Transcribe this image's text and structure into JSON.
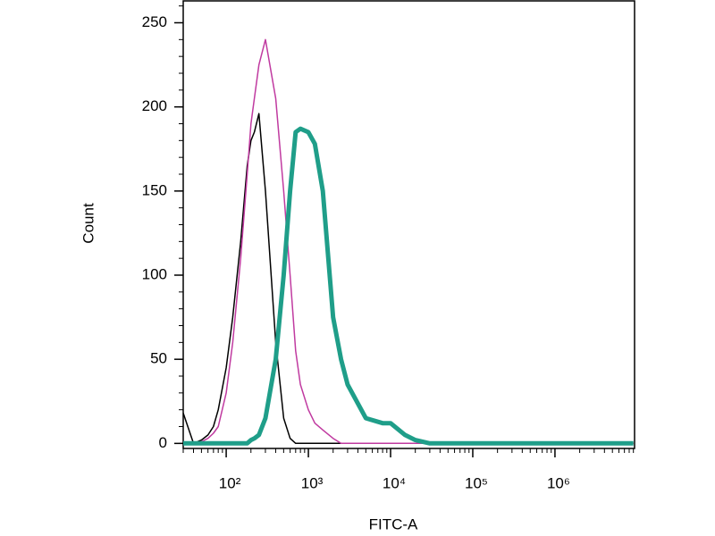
{
  "chart_data": {
    "type": "line",
    "xlabel": "FITC-A",
    "ylabel": "Count",
    "xscale": "log",
    "xlim": [
      30,
      9300000
    ],
    "ylim": [
      -3,
      263
    ],
    "xticks": [
      {
        "value": 100,
        "label": "10²"
      },
      {
        "value": 1000,
        "label": "10³"
      },
      {
        "value": 10000,
        "label": "10⁴"
      },
      {
        "value": 100000,
        "label": "10⁵"
      },
      {
        "value": 1000000,
        "label": "10⁶"
      }
    ],
    "yticks": [
      0,
      50,
      100,
      150,
      200,
      250
    ],
    "x": [
      30,
      40,
      50,
      60,
      70,
      80,
      100,
      120,
      150,
      180,
      200,
      220,
      250,
      300,
      400,
      500,
      600,
      700,
      800,
      1000,
      1200,
      1500,
      2000,
      2500,
      3000,
      5000,
      8000,
      10000,
      15000,
      20000,
      30000,
      100000,
      1000000,
      9000000
    ],
    "series": [
      {
        "color": "#000000",
        "width": 1.5,
        "values": [
          18,
          0,
          2,
          5,
          10,
          20,
          45,
          75,
          120,
          165,
          180,
          185,
          196,
          150,
          60,
          15,
          3,
          0,
          0,
          0,
          0,
          0,
          0,
          0,
          0,
          0,
          0,
          0,
          0,
          0,
          0,
          0,
          0,
          0
        ]
      },
      {
        "color": "#c03aa0",
        "width": 1.5,
        "values": [
          0,
          0,
          1,
          3,
          6,
          10,
          30,
          60,
          110,
          160,
          190,
          205,
          225,
          240,
          205,
          150,
          100,
          55,
          35,
          20,
          12,
          8,
          3,
          0,
          0,
          0,
          0,
          0,
          0,
          0,
          0,
          0,
          0,
          0
        ]
      },
      {
        "color": "#1f9e89",
        "width": 5,
        "values": [
          0,
          0,
          0,
          0,
          0,
          0,
          0,
          0,
          0,
          0,
          2,
          3,
          5,
          15,
          50,
          100,
          150,
          185,
          187,
          185,
          178,
          150,
          75,
          50,
          35,
          15,
          12,
          12,
          5,
          2,
          0,
          0,
          0,
          0
        ]
      }
    ]
  }
}
